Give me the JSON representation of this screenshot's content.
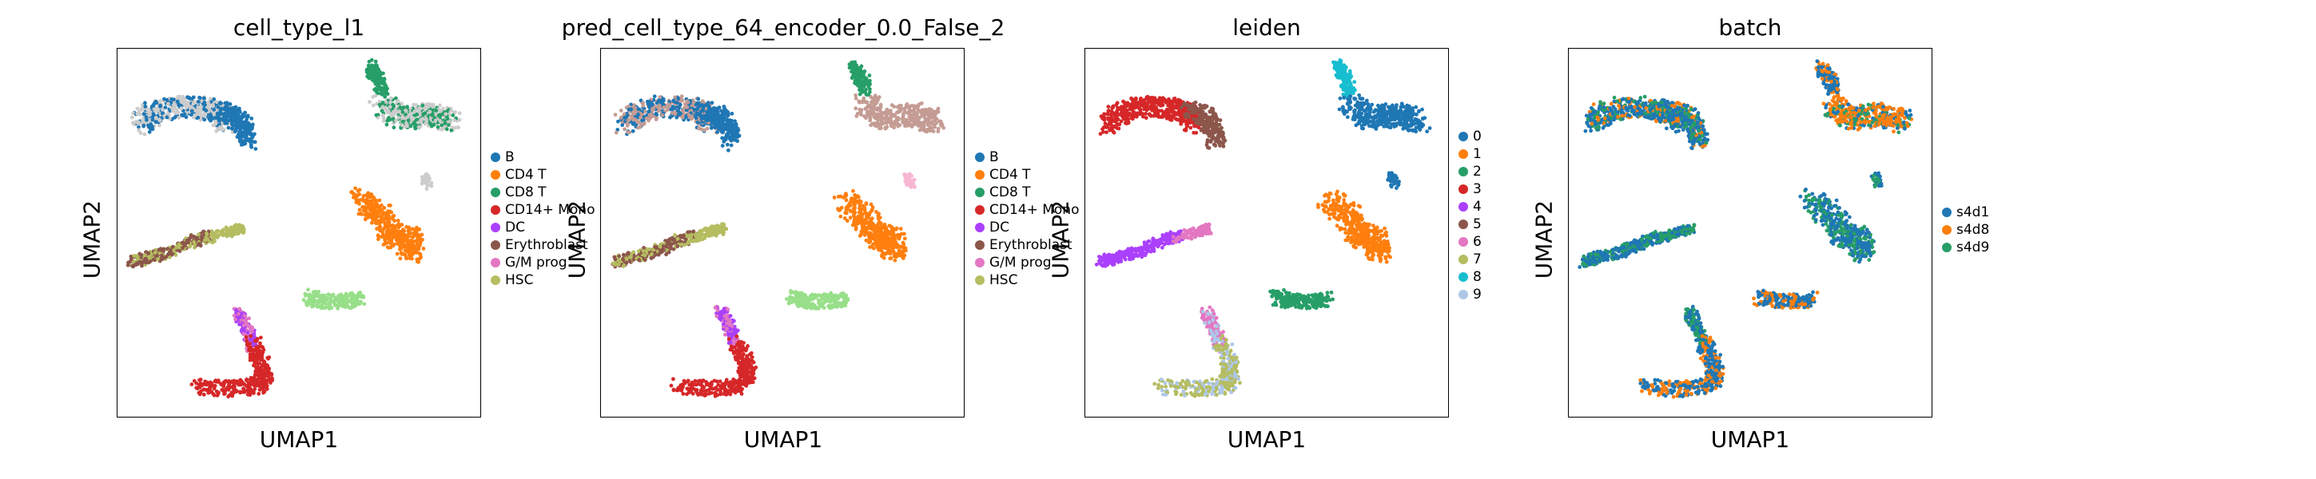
{
  "chart_data": [
    {
      "type": "scatter",
      "title": "cell_type_l1",
      "xlabel": "UMAP1",
      "ylabel": "UMAP2",
      "grid": false,
      "legend_placement": "right",
      "legend": [
        {
          "label": "B",
          "color": "#1f77b4"
        },
        {
          "label": "CD4 T",
          "color": "#ff7f0e"
        },
        {
          "label": "CD8 T",
          "color": "#279e68"
        },
        {
          "label": "CD14+ Mono",
          "color": "#d62728"
        },
        {
          "label": "DC",
          "color": "#aa40fc"
        },
        {
          "label": "Erythroblast",
          "color": "#8c564b"
        },
        {
          "label": "G/M prog",
          "color": "#e377c2"
        },
        {
          "label": "HSC",
          "color": "#b5bd61"
        }
      ],
      "clusters": [
        {
          "name": "arc-left",
          "color": "#cccccc",
          "secondary": "#1f77b4"
        },
        {
          "name": "arc-right",
          "color": "#1f77b4"
        },
        {
          "name": "top-right-top",
          "color": "#279e68"
        },
        {
          "name": "top-right-blob",
          "color": "#cccccc",
          "secondary": "#279e68"
        },
        {
          "name": "small-right",
          "color": "#cccccc"
        },
        {
          "name": "mid-right",
          "color": "#ff7f0e"
        },
        {
          "name": "left-streak",
          "color": "#8c564b",
          "secondary": "#b5bd61"
        },
        {
          "name": "left-streak-end",
          "color": "#b5bd61"
        },
        {
          "name": "small-green",
          "color": "#98df8a"
        },
        {
          "name": "bottom-top",
          "color": "#aa40fc",
          "secondary": "#e377c2"
        },
        {
          "name": "bottom-red",
          "color": "#d62728"
        }
      ]
    },
    {
      "type": "scatter",
      "title": "pred_cell_type_64_encoder_0.0_False_2",
      "xlabel": "UMAP1",
      "ylabel": "UMAP2",
      "grid": false,
      "legend_placement": "right",
      "legend": [
        {
          "label": "B",
          "color": "#1f77b4"
        },
        {
          "label": "CD4 T",
          "color": "#ff7f0e"
        },
        {
          "label": "CD8 T",
          "color": "#279e68"
        },
        {
          "label": "CD14+ Mono",
          "color": "#d62728"
        },
        {
          "label": "DC",
          "color": "#aa40fc"
        },
        {
          "label": "Erythroblast",
          "color": "#8c564b"
        },
        {
          "label": "G/M prog",
          "color": "#e377c2"
        },
        {
          "label": "HSC",
          "color": "#b5bd61"
        }
      ],
      "clusters": [
        {
          "name": "arc-left",
          "color": "#c49c94",
          "secondary": "#1f77b4"
        },
        {
          "name": "arc-right",
          "color": "#1f77b4"
        },
        {
          "name": "top-right-top",
          "color": "#279e68"
        },
        {
          "name": "top-right-blob",
          "color": "#c49c94"
        },
        {
          "name": "small-right",
          "color": "#f7b6d2"
        },
        {
          "name": "mid-right",
          "color": "#ff7f0e"
        },
        {
          "name": "left-streak",
          "color": "#8c564b",
          "secondary": "#b5bd61"
        },
        {
          "name": "left-streak-end",
          "color": "#b5bd61"
        },
        {
          "name": "small-green",
          "color": "#98df8a"
        },
        {
          "name": "bottom-top",
          "color": "#aa40fc",
          "secondary": "#e377c2"
        },
        {
          "name": "bottom-red",
          "color": "#d62728"
        }
      ]
    },
    {
      "type": "scatter",
      "title": "leiden",
      "xlabel": "UMAP1",
      "ylabel": "UMAP2",
      "grid": false,
      "legend_placement": "right",
      "legend": [
        {
          "label": "0",
          "color": "#1f77b4"
        },
        {
          "label": "1",
          "color": "#ff7f0e"
        },
        {
          "label": "2",
          "color": "#279e68"
        },
        {
          "label": "3",
          "color": "#d62728"
        },
        {
          "label": "4",
          "color": "#aa40fc"
        },
        {
          "label": "5",
          "color": "#8c564b"
        },
        {
          "label": "6",
          "color": "#e377c2"
        },
        {
          "label": "7",
          "color": "#b5bd61"
        },
        {
          "label": "8",
          "color": "#17becf"
        },
        {
          "label": "9",
          "color": "#aec7e8"
        }
      ],
      "clusters": [
        {
          "name": "arc-left",
          "color": "#d62728"
        },
        {
          "name": "arc-right",
          "color": "#8c564b"
        },
        {
          "name": "top-right-top",
          "color": "#17becf"
        },
        {
          "name": "top-right-blob",
          "color": "#1f77b4"
        },
        {
          "name": "small-right",
          "color": "#1f77b4"
        },
        {
          "name": "mid-right",
          "color": "#ff7f0e"
        },
        {
          "name": "left-streak",
          "color": "#aa40fc"
        },
        {
          "name": "left-streak-end",
          "color": "#e377c2"
        },
        {
          "name": "small-green",
          "color": "#279e68"
        },
        {
          "name": "bottom-top",
          "color": "#e377c2",
          "secondary": "#aec7e8"
        },
        {
          "name": "bottom-red",
          "color": "#b5bd61",
          "secondary": "#aec7e8"
        }
      ]
    },
    {
      "type": "scatter",
      "title": "batch",
      "xlabel": "UMAP1",
      "ylabel": "UMAP2",
      "grid": false,
      "legend_placement": "right",
      "legend": [
        {
          "label": "s4d1",
          "color": "#1f77b4"
        },
        {
          "label": "s4d8",
          "color": "#ff7f0e"
        },
        {
          "label": "s4d9",
          "color": "#279e68"
        }
      ],
      "clusters": [
        {
          "name": "arc-left",
          "color": "#1f77b4",
          "secondary": "#279e68",
          "tertiary": "#ff7f0e"
        },
        {
          "name": "arc-right",
          "color": "#1f77b4",
          "secondary": "#279e68",
          "tertiary": "#ff7f0e"
        },
        {
          "name": "top-right-top",
          "color": "#1f77b4",
          "secondary": "#ff7f0e"
        },
        {
          "name": "top-right-blob",
          "color": "#ff7f0e",
          "secondary": "#1f77b4",
          "tertiary": "#279e68"
        },
        {
          "name": "small-right",
          "color": "#1f77b4",
          "secondary": "#279e68"
        },
        {
          "name": "mid-right",
          "color": "#1f77b4",
          "secondary": "#279e68"
        },
        {
          "name": "left-streak",
          "color": "#1f77b4",
          "secondary": "#279e68"
        },
        {
          "name": "left-streak-end",
          "color": "#279e68",
          "secondary": "#1f77b4"
        },
        {
          "name": "small-green",
          "color": "#1f77b4",
          "secondary": "#ff7f0e"
        },
        {
          "name": "bottom-top",
          "color": "#1f77b4",
          "secondary": "#279e68"
        },
        {
          "name": "bottom-red",
          "color": "#1f77b4",
          "secondary": "#ff7f0e"
        }
      ]
    }
  ]
}
